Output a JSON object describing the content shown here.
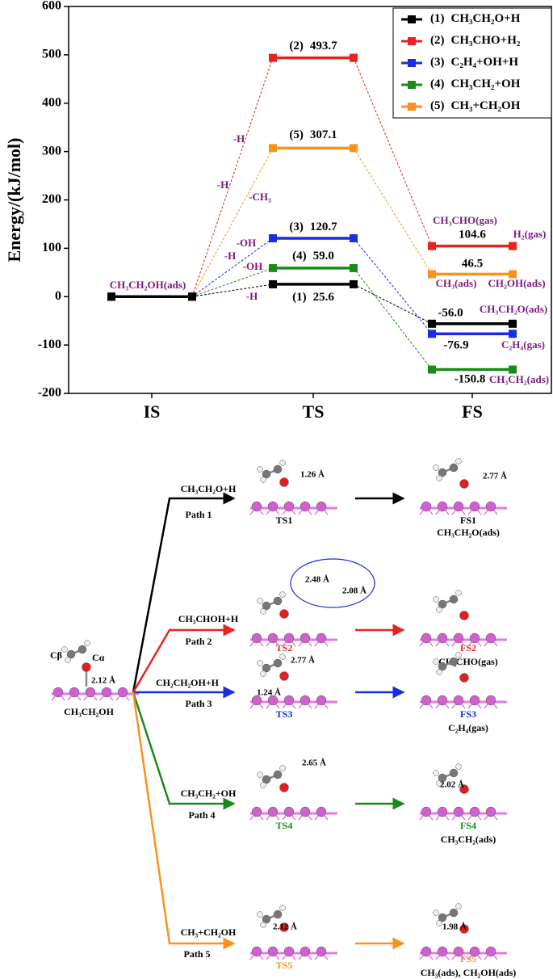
{
  "chart_data": {
    "type": "energy-profile",
    "ylabel": "Energy/(kJ/mol)",
    "categories": [
      "IS",
      "TS",
      "FS"
    ],
    "ylim": [
      -200,
      600
    ],
    "yticks": [
      -200,
      -100,
      0,
      100,
      200,
      300,
      400,
      500,
      600
    ],
    "series": [
      {
        "tag": "(1)",
        "name": "CH₃CH₂O+H",
        "color": "#000000",
        "values": [
          0,
          25.6,
          -56.0
        ],
        "value_labels": [
          null,
          "25.6",
          "-56.0"
        ]
      },
      {
        "tag": "(2)",
        "name": "CH₃CHO+H₂",
        "color": "#e8231e",
        "values": [
          0,
          493.7,
          104.6
        ],
        "value_labels": [
          null,
          "493.7",
          "104.6"
        ]
      },
      {
        "tag": "(3)",
        "name": "C₂H₄+OH+H",
        "color": "#1a2de0",
        "values": [
          0,
          120.7,
          -76.9
        ],
        "value_labels": [
          null,
          "120.7",
          "-76.9"
        ]
      },
      {
        "tag": "(4)",
        "name": "CH₃CH₂+OH",
        "color": "#1a8a1a",
        "values": [
          0,
          59.0,
          -150.8
        ],
        "value_labels": [
          null,
          "59.0",
          "-150.8"
        ]
      },
      {
        "tag": "(5)",
        "name": "CH₃+CH₂OH",
        "color": "#f7931e",
        "values": [
          0,
          307.1,
          46.5
        ],
        "value_labels": [
          null,
          "307.1",
          "46.5"
        ]
      }
    ],
    "legend": "upper right",
    "annotations": [
      "CH₃CH₂OH(ads)",
      "CH₃CHO(gas)",
      "H₂(gas)",
      "CH₃(ads)",
      "CH₂OH(ads)",
      "CH₃CH₂O(ads)",
      "C₂H₄(gas)",
      "CH₃CH₂(ads)",
      "-H",
      "-H",
      "-CH₃",
      "-OH",
      "-H",
      "-OH",
      "-H"
    ]
  },
  "diagram": {
    "initial": {
      "label": "CH₃CH₂OH",
      "c_beta": "Cβ",
      "c_alpha": "Cα",
      "distance": "2.12 Å"
    },
    "paths": [
      {
        "reactants": "CH₃CH₂O+H",
        "name": "Path 1",
        "ts": "TS1",
        "fs": "FS1",
        "fs_species": "CH₃CH₂O(ads)",
        "color": "#000000",
        "ts_distances": [
          "1.26 Å"
        ],
        "fs_distances": [
          "2.77 Å"
        ]
      },
      {
        "reactants": "CH₃CHOH+H",
        "name": "Path 2",
        "ts": "TS2",
        "fs": "FS2",
        "fs_species": "CH₃CHO(gas)",
        "color": "#e8231e",
        "ts_distances": [
          "2.48 Å",
          "2.08 Å"
        ],
        "fs_distances": []
      },
      {
        "reactants": "CH₂CH₂OH+H",
        "name": "Path 3",
        "ts": "TS3",
        "fs": "FS3",
        "fs_species": "C₂H₄(gas)",
        "color": "#1a2de0",
        "ts_distances": [
          "1.24 Å",
          "2.77 Å"
        ],
        "fs_distances": []
      },
      {
        "reactants": "CH₃CH₂+OH",
        "name": "Path 4",
        "ts": "TS4",
        "fs": "FS4",
        "fs_species": "CH₃CH₂(ads)",
        "color": "#1a8a1a",
        "ts_distances": [
          "2.65 Å"
        ],
        "fs_distances": [
          "2.02 Å"
        ]
      },
      {
        "reactants": "CH₃+CH₂OH",
        "name": "Path 5",
        "ts": "TS5",
        "fs": "FS5",
        "fs_species": "CH₃(ads), CH₂OH(ads)",
        "color": "#f7931e",
        "ts_distances": [
          "2.12 Å"
        ],
        "fs_distances": [
          "1.98 Å"
        ]
      }
    ]
  }
}
